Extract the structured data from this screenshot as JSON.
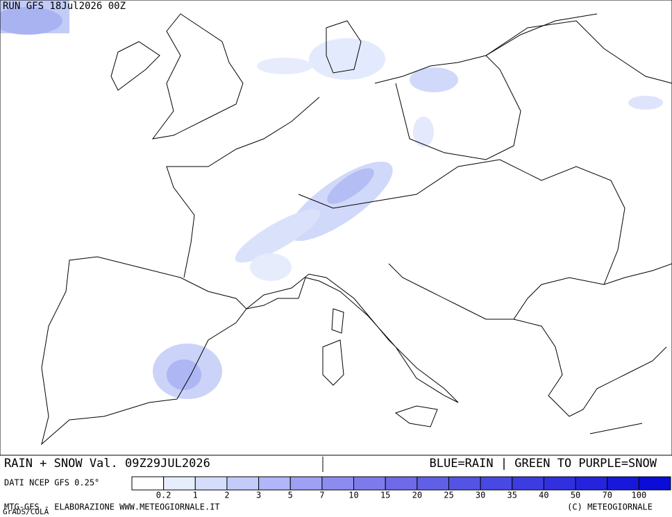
{
  "header": {
    "run": "RUN GFS 18Jul2026 00Z"
  },
  "footer": {
    "title": "RAIN + SNOW Val. 09Z29JUL2026",
    "note": "BLUE=RAIN | GREEN TO PURPLE=SNOW",
    "source": "DATI NCEP GFS 0.25°",
    "credit_left": "MTG-GFS - ELABORAZIONE WWW.METEOGIORNALE.IT",
    "credit_right": "(C) METEOGIORNALE",
    "software": "GrADS/COLA"
  },
  "legend": {
    "labels": [
      0.2,
      1,
      2,
      3,
      5,
      7,
      10,
      15,
      20,
      25,
      30,
      35,
      40,
      50,
      70,
      100
    ],
    "colors": [
      "#ffffff",
      "#e6eefe",
      "#d4defc",
      "#c2cbfa",
      "#b0b6f7",
      "#9ea1f3",
      "#8c8cf0",
      "#7d7bec",
      "#6e6ae8",
      "#6060e6",
      "#5454e4",
      "#4848e2",
      "#3c3ce0",
      "#3030de",
      "#2424dc",
      "#1818da",
      "#0c0cd8"
    ]
  }
}
